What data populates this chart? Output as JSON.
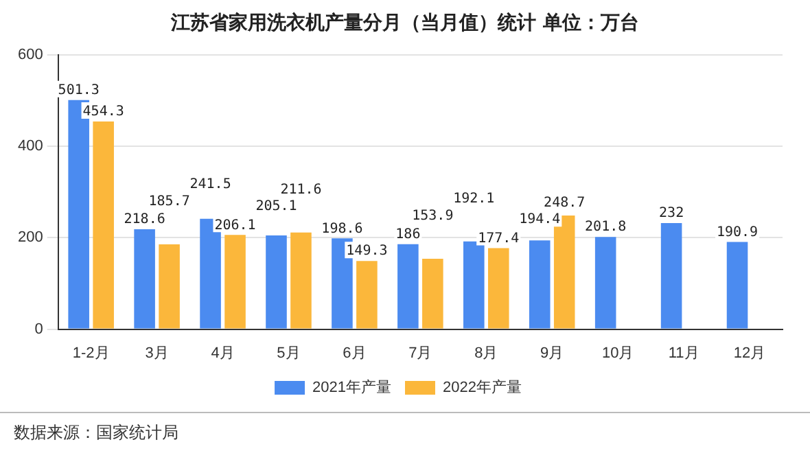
{
  "chart_data": {
    "type": "bar",
    "title": "江苏省家用洗衣机产量分月（当月值）统计 单位：万台",
    "categories": [
      "1-2月",
      "3月",
      "4月",
      "5月",
      "6月",
      "7月",
      "8月",
      "9月",
      "10月",
      "11月",
      "12月"
    ],
    "series": [
      {
        "name": "2021年产量",
        "color": "#4b8bf0",
        "values": [
          501.3,
          218.6,
          241.5,
          205.1,
          198.6,
          186,
          192.1,
          194.4,
          201.8,
          232,
          190.9
        ]
      },
      {
        "name": "2022年产量",
        "color": "#fbb73b",
        "values": [
          454.3,
          185.7,
          206.1,
          211.6,
          149.3,
          153.9,
          177.4,
          248.7,
          null,
          null,
          null
        ]
      }
    ],
    "ylim": [
      0,
      600
    ],
    "yticks": [
      0,
      200,
      400,
      600
    ],
    "grid": "y",
    "legend": "bottom",
    "data_labels": true,
    "annotations": [
      "数据来源：国家统计局"
    ]
  }
}
